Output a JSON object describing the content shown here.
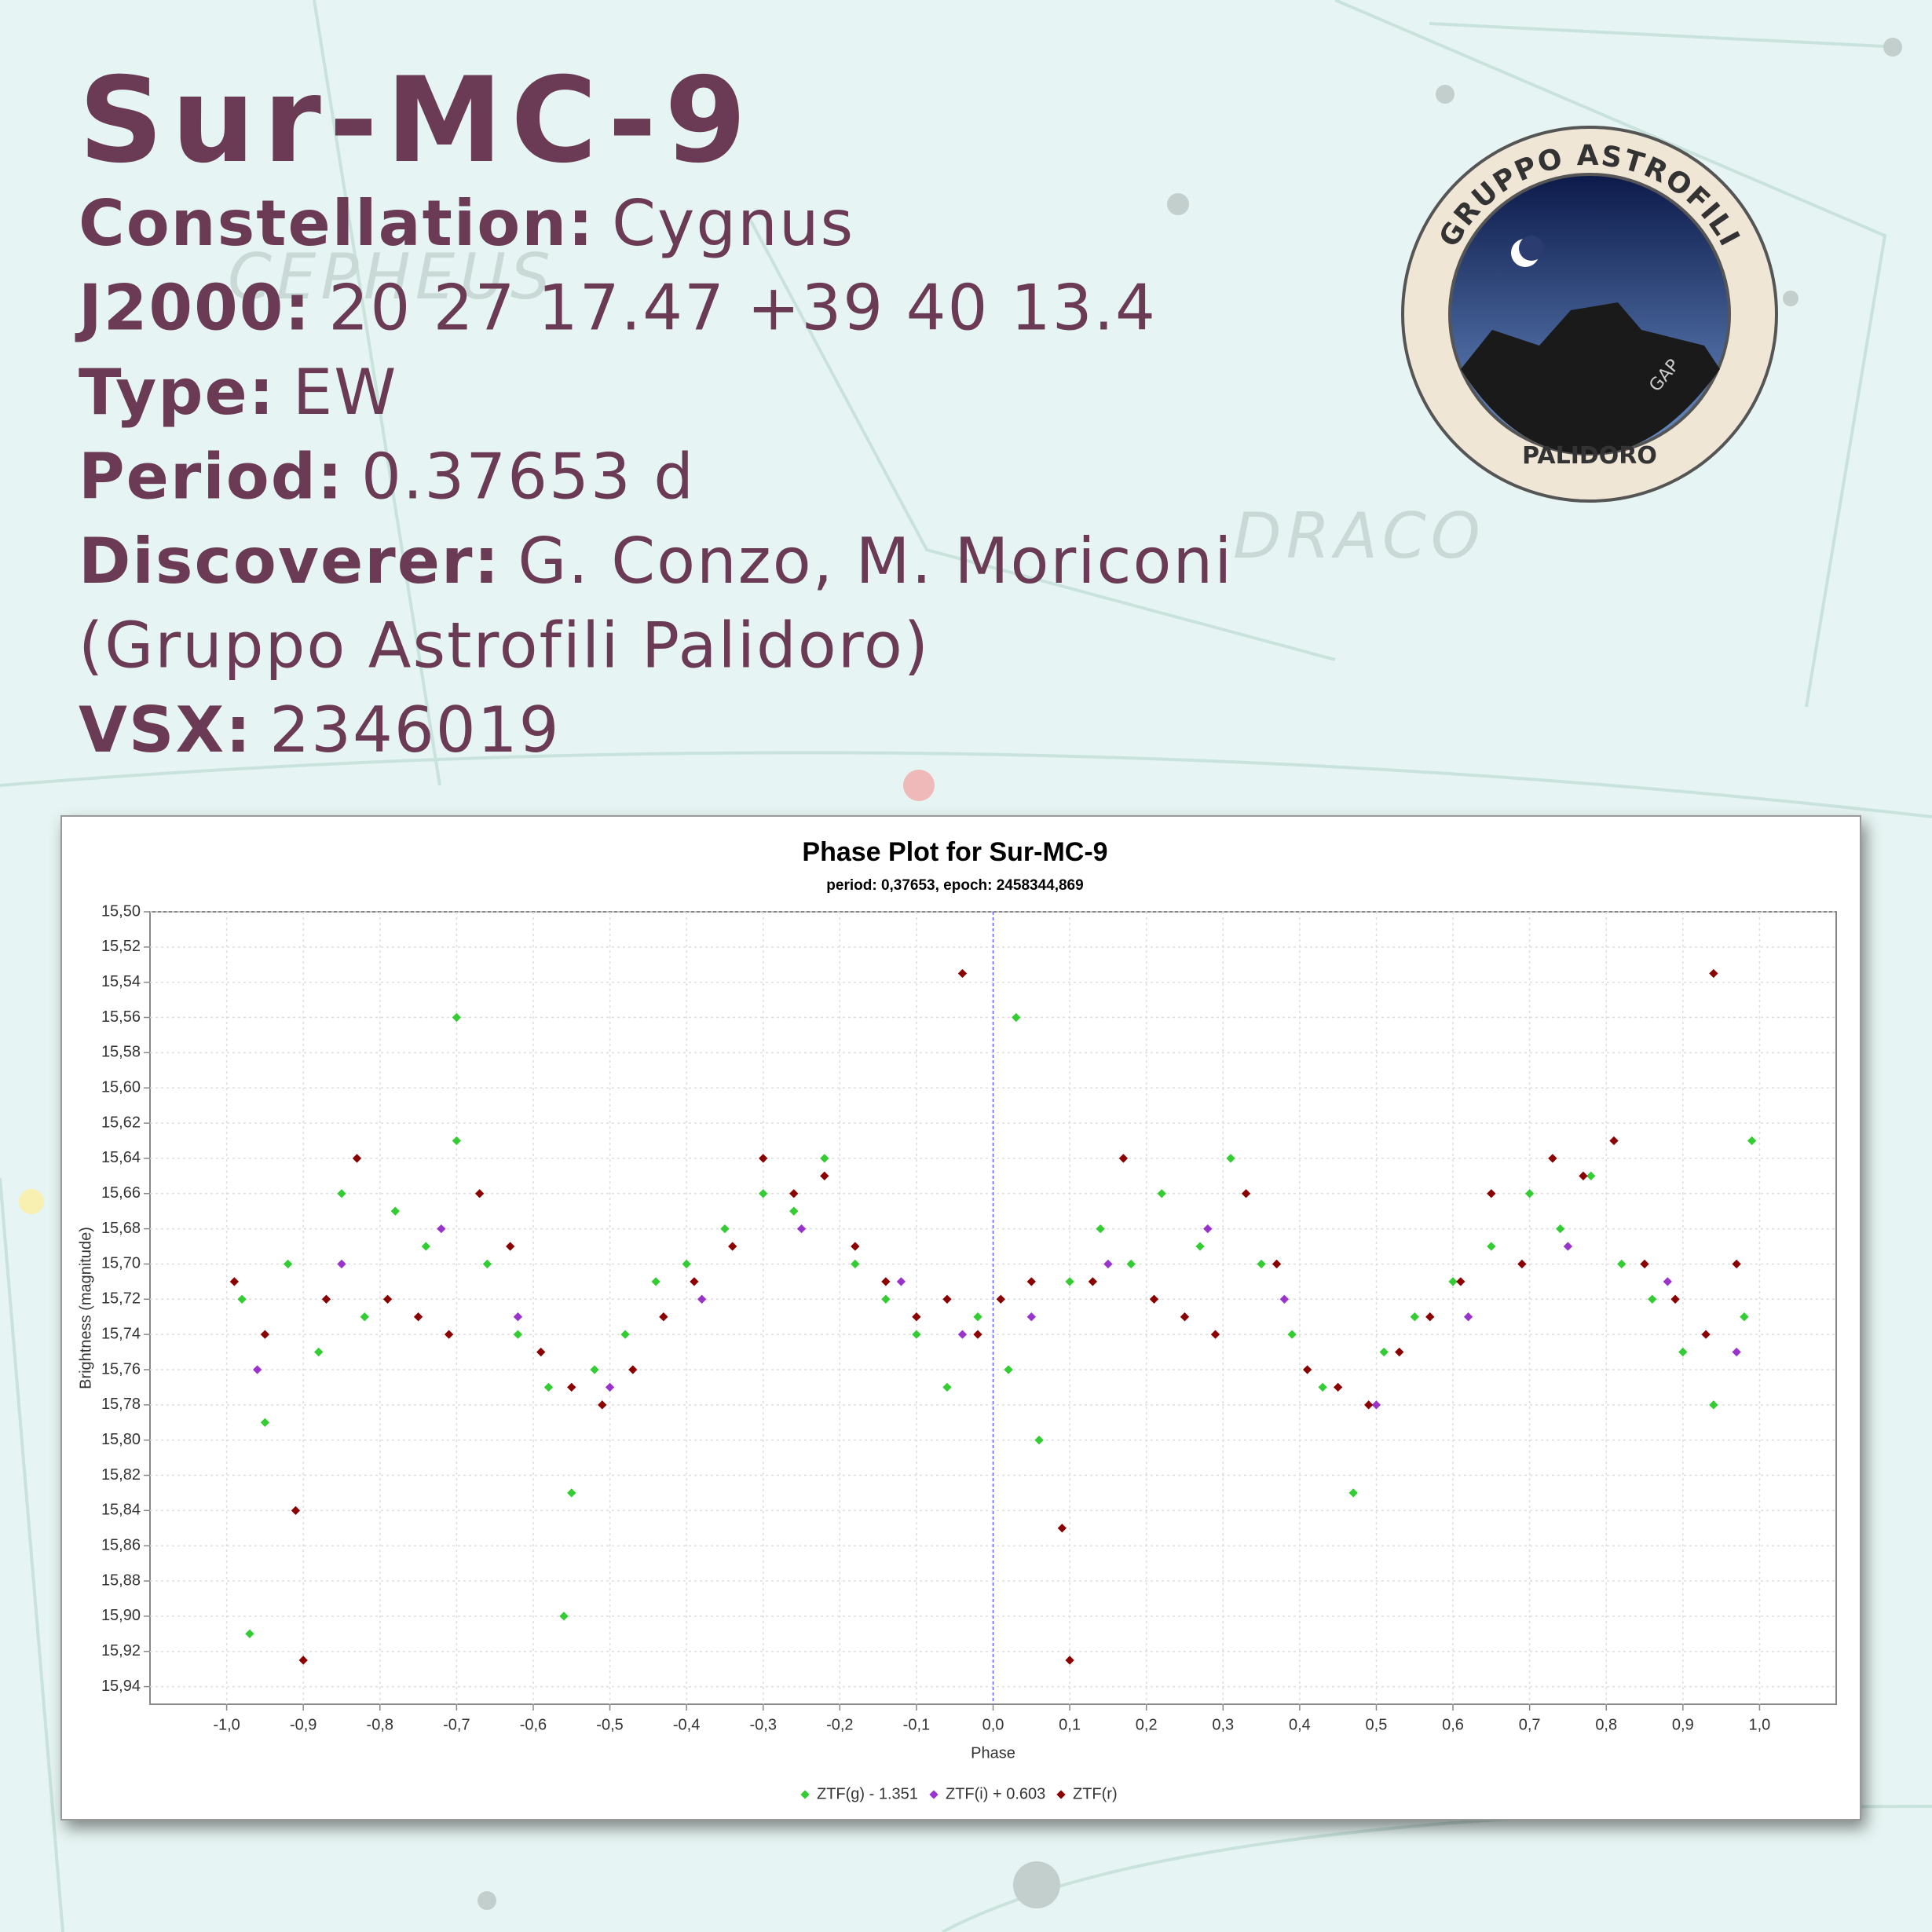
{
  "header": {
    "title": "Sur-MC-9",
    "info": [
      {
        "label": "Constellation:",
        "value": "Cygnus"
      },
      {
        "label": "J2000:",
        "value": "20 27 17.47 +39 40 13.4"
      },
      {
        "label": "Type:",
        "value": "EW"
      },
      {
        "label": "Period:",
        "value": "0.37653 d"
      },
      {
        "label": "Discoverer:",
        "value": "G. Conzo, M. Moriconi"
      },
      {
        "value": "(Gruppo Astrofili Palidoro)"
      },
      {
        "label": "VSX:",
        "value": "2346019"
      }
    ]
  },
  "background": {
    "labels": [
      "CEPHEUS",
      "DRACO"
    ]
  },
  "logo": {
    "top": "GRUPPO ASTROFILI",
    "bottom": "PALIDORO",
    "side": "GAP"
  },
  "chart_data": {
    "type": "scatter",
    "title": "Phase Plot for Sur-MC-9",
    "subtitle": "period: 0,37653, epoch: 2458344,869",
    "x_label": "Phase",
    "y_label": "Brightness (magnitude)",
    "grid": true,
    "y_inverted": true,
    "xlim": [
      -1.1,
      1.1
    ],
    "ylim": [
      15.5,
      15.95
    ],
    "xticks": [
      {
        "value": -1,
        "label": "-1,0"
      },
      {
        "value": -0.9,
        "label": "-0,9"
      },
      {
        "value": -0.8,
        "label": "-0,8"
      },
      {
        "value": -0.7,
        "label": "-0,7"
      },
      {
        "value": -0.6,
        "label": "-0,6"
      },
      {
        "value": -0.5,
        "label": "-0,5"
      },
      {
        "value": -0.4,
        "label": "-0,4"
      },
      {
        "value": -0.3,
        "label": "-0,3"
      },
      {
        "value": -0.2,
        "label": "-0,2"
      },
      {
        "value": -0.1,
        "label": "-0,1"
      },
      {
        "value": 0,
        "label": "0,0"
      },
      {
        "value": 0.1,
        "label": "0,1"
      },
      {
        "value": 0.2,
        "label": "0,2"
      },
      {
        "value": 0.3,
        "label": "0,3"
      },
      {
        "value": 0.4,
        "label": "0,4"
      },
      {
        "value": 0.5,
        "label": "0,5"
      },
      {
        "value": 0.6,
        "label": "0,6"
      },
      {
        "value": 0.7,
        "label": "0,7"
      },
      {
        "value": 0.8,
        "label": "0,8"
      },
      {
        "value": 0.9,
        "label": "0,9"
      },
      {
        "value": 1,
        "label": "1,0"
      }
    ],
    "yticks": [
      {
        "value": 15.5,
        "label": "15,50"
      },
      {
        "value": 15.52,
        "label": "15,52"
      },
      {
        "value": 15.54,
        "label": "15,54"
      },
      {
        "value": 15.56,
        "label": "15,56"
      },
      {
        "value": 15.58,
        "label": "15,58"
      },
      {
        "value": 15.6,
        "label": "15,60"
      },
      {
        "value": 15.62,
        "label": "15,62"
      },
      {
        "value": 15.64,
        "label": "15,64"
      },
      {
        "value": 15.66,
        "label": "15,66"
      },
      {
        "value": 15.68,
        "label": "15,68"
      },
      {
        "value": 15.7,
        "label": "15,70"
      },
      {
        "value": 15.72,
        "label": "15,72"
      },
      {
        "value": 15.74,
        "label": "15,74"
      },
      {
        "value": 15.76,
        "label": "15,76"
      },
      {
        "value": 15.78,
        "label": "15,78"
      },
      {
        "value": 15.8,
        "label": "15,80"
      },
      {
        "value": 15.82,
        "label": "15,82"
      },
      {
        "value": 15.84,
        "label": "15,84"
      },
      {
        "value": 15.86,
        "label": "15,86"
      },
      {
        "value": 15.88,
        "label": "15,88"
      },
      {
        "value": 15.9,
        "label": "15,90"
      },
      {
        "value": 15.92,
        "label": "15,92"
      },
      {
        "value": 15.94,
        "label": "15,94"
      }
    ],
    "series": [
      {
        "name": "ZTF(g) - 1.351",
        "color": "#33cc33",
        "x": [
          -0.98,
          -0.95,
          -0.92,
          -0.88,
          -0.85,
          -0.82,
          -0.78,
          -0.74,
          -0.7,
          -0.66,
          -0.62,
          -0.58,
          -0.55,
          -0.52,
          -0.48,
          -0.44,
          -0.4,
          -0.35,
          -0.3,
          -0.26,
          -0.22,
          -0.18,
          -0.14,
          -0.1,
          -0.06,
          -0.02,
          0.02,
          0.06,
          0.1,
          0.14,
          0.18,
          0.22,
          0.27,
          0.31,
          0.35,
          0.39,
          0.43,
          0.47,
          0.51,
          0.55,
          0.6,
          0.65,
          0.7,
          0.74,
          0.78,
          0.82,
          0.86,
          0.9,
          0.94,
          0.98,
          -0.97,
          -0.7,
          0.03,
          0.99,
          -0.56
        ],
        "values": [
          15.72,
          15.79,
          15.7,
          15.75,
          15.66,
          15.73,
          15.67,
          15.69,
          15.63,
          15.7,
          15.74,
          15.77,
          15.83,
          15.76,
          15.74,
          15.71,
          15.7,
          15.68,
          15.66,
          15.67,
          15.64,
          15.7,
          15.72,
          15.74,
          15.77,
          15.73,
          15.76,
          15.8,
          15.71,
          15.68,
          15.7,
          15.66,
          15.69,
          15.64,
          15.7,
          15.74,
          15.77,
          15.83,
          15.75,
          15.73,
          15.71,
          15.69,
          15.66,
          15.68,
          15.65,
          15.7,
          15.72,
          15.75,
          15.78,
          15.73,
          15.91,
          15.56,
          15.56,
          15.63,
          15.9
        ]
      },
      {
        "name": "ZTF(i) + 0.603",
        "color": "#9933cc",
        "x": [
          -0.96,
          -0.85,
          -0.72,
          -0.62,
          -0.5,
          -0.38,
          -0.25,
          -0.12,
          -0.04,
          0.05,
          0.15,
          0.28,
          0.38,
          0.5,
          0.62,
          0.75,
          0.88,
          0.97
        ],
        "values": [
          15.76,
          15.7,
          15.68,
          15.73,
          15.77,
          15.72,
          15.68,
          15.71,
          15.74,
          15.73,
          15.7,
          15.68,
          15.72,
          15.78,
          15.73,
          15.69,
          15.71,
          15.75
        ]
      },
      {
        "name": "ZTF(r)",
        "color": "#8b0000",
        "x": [
          -0.99,
          -0.95,
          -0.91,
          -0.87,
          -0.83,
          -0.79,
          -0.75,
          -0.71,
          -0.67,
          -0.63,
          -0.59,
          -0.55,
          -0.51,
          -0.47,
          -0.43,
          -0.39,
          -0.34,
          -0.3,
          -0.26,
          -0.22,
          -0.18,
          -0.14,
          -0.1,
          -0.06,
          -0.02,
          0.01,
          0.05,
          0.09,
          0.13,
          0.17,
          0.21,
          0.25,
          0.29,
          0.33,
          0.37,
          0.41,
          0.45,
          0.49,
          0.53,
          0.57,
          0.61,
          0.65,
          0.69,
          0.73,
          0.77,
          0.81,
          0.85,
          0.89,
          0.93,
          0.97,
          -0.9,
          -0.04,
          0.1,
          0.94
        ],
        "values": [
          15.71,
          15.74,
          15.84,
          15.72,
          15.64,
          15.72,
          15.73,
          15.74,
          15.66,
          15.69,
          15.75,
          15.77,
          15.78,
          15.76,
          15.73,
          15.71,
          15.69,
          15.64,
          15.66,
          15.65,
          15.69,
          15.71,
          15.73,
          15.72,
          15.74,
          15.72,
          15.71,
          15.85,
          15.71,
          15.64,
          15.72,
          15.73,
          15.74,
          15.66,
          15.7,
          15.76,
          15.77,
          15.78,
          15.75,
          15.73,
          15.71,
          15.66,
          15.7,
          15.64,
          15.65,
          15.63,
          15.7,
          15.72,
          15.74,
          15.7,
          15.925,
          15.535,
          15.925,
          15.535
        ]
      }
    ]
  }
}
